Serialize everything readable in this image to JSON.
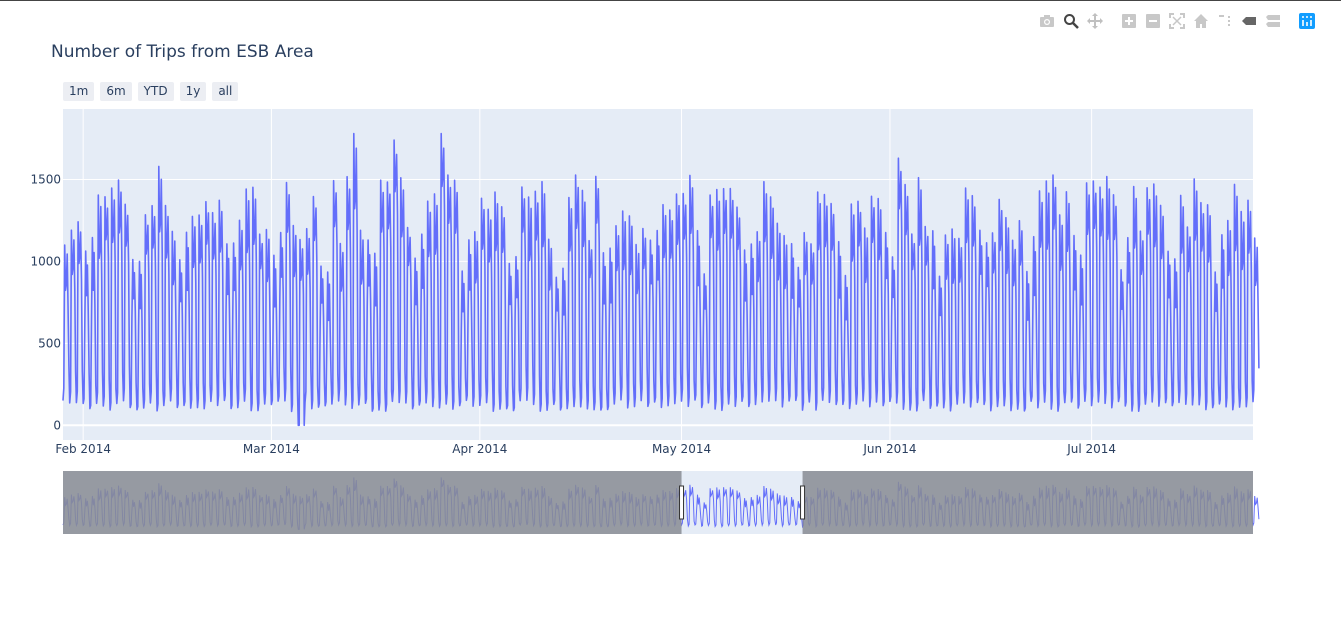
{
  "modebar": {
    "buttons": [
      {
        "name": "camera-icon",
        "title": "Download plot as a png"
      },
      {
        "name": "zoom-icon",
        "title": "Zoom"
      },
      {
        "name": "pan-icon",
        "title": "Pan"
      },
      {
        "name": "zoom-in-icon",
        "title": "Zoom in"
      },
      {
        "name": "zoom-out-icon",
        "title": "Zoom out"
      },
      {
        "name": "autoscale-icon",
        "title": "Autoscale"
      },
      {
        "name": "home-icon",
        "title": "Reset axes"
      },
      {
        "name": "spike-lines-icon",
        "title": "Toggle Spike Lines"
      },
      {
        "name": "hover-closest-icon",
        "title": "Show closest data on hover"
      },
      {
        "name": "hover-compare-icon",
        "title": "Compare data on hover"
      },
      {
        "name": "plotly-logo-icon",
        "title": "Produced with Plotly"
      }
    ]
  },
  "range_selector": {
    "buttons": [
      "1m",
      "6m",
      "YTD",
      "1y",
      "all"
    ]
  },
  "colors": {
    "line": "#636efa",
    "plot_bg": "#e5ecf6",
    "grid": "#ffffff",
    "slider_mask": "#888c93",
    "slider_line": "#3b3f8c"
  },
  "chart_data": {
    "type": "line",
    "title": "Number of Trips from ESB Area",
    "xlabel": "",
    "ylabel": "",
    "frequency": "hourly",
    "x_range": [
      "2014-01-29",
      "2014-07-25"
    ],
    "ylim": [
      -90,
      1930
    ],
    "y_ticks": [
      0,
      500,
      1000,
      1500
    ],
    "y_tick_labels": [
      "0",
      "500",
      "1000",
      "1500"
    ],
    "x_ticks": [
      "2014-02-01",
      "2014-03-01",
      "2014-04-01",
      "2014-05-01",
      "2014-06-01",
      "2014-07-01"
    ],
    "x_tick_labels": [
      "Feb 2014",
      "Mar 2014",
      "Apr 2014",
      "May 2014",
      "Jun 2014",
      "Jul 2014"
    ],
    "daily_min_approx": 120,
    "daily_peak_range": [
      900,
      1780
    ],
    "overall_max_approx": 1780,
    "overall_min_approx": 0,
    "grid": true,
    "rangeslider": {
      "visible": true,
      "window": [
        "2014-05-01",
        "2014-05-19"
      ]
    },
    "daily_peaks": [
      {
        "date": "2014-02-12",
        "value": 1580
      },
      {
        "date": "2014-03-13",
        "value": 1780
      },
      {
        "date": "2014-03-19",
        "value": 1740
      },
      {
        "date": "2014-03-26",
        "value": 1780
      },
      {
        "date": "2014-06-02",
        "value": 1630
      },
      {
        "date": "2014-07-01",
        "value": 1490
      },
      {
        "date": "2014-07-22",
        "value": 1470
      }
    ]
  }
}
